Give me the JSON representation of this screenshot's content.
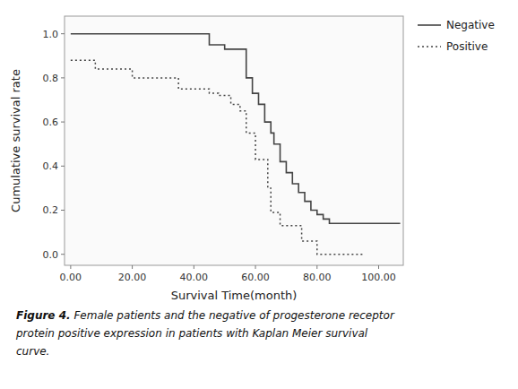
{
  "chart_data": {
    "type": "step",
    "x_label": "Survival Time(month)",
    "y_label": "Cumulative survival rate",
    "xlim": [
      -2,
      108
    ],
    "ylim": [
      -0.05,
      1.08
    ],
    "xticks": [
      {
        "value": 0,
        "label": "0.00"
      },
      {
        "value": 20,
        "label": "20.00"
      },
      {
        "value": 40,
        "label": "40.00"
      },
      {
        "value": 60,
        "label": "60.00"
      },
      {
        "value": 80,
        "label": "80.00"
      },
      {
        "value": 100,
        "label": "100.00"
      }
    ],
    "yticks": [
      {
        "value": 0,
        "label": "0.0"
      },
      0.2,
      0.4,
      0.6,
      0.8,
      {
        "value": 1,
        "label": "1.0"
      }
    ],
    "grid": false,
    "legend": "right",
    "series": [
      {
        "name": "Negative",
        "color": "#444444",
        "line_style": "solid",
        "x": [
          0,
          10,
          10,
          20,
          20,
          45,
          45,
          50,
          50,
          52,
          52,
          55,
          55,
          57,
          57,
          59,
          59,
          61,
          61,
          63,
          63,
          65,
          65,
          66,
          66,
          68,
          68,
          70,
          70,
          72,
          72,
          74,
          74,
          76,
          76,
          78,
          78,
          80,
          80,
          82,
          82,
          84,
          84,
          90,
          90,
          100,
          100,
          107
        ],
        "values": [
          1.0,
          1.0,
          1.0,
          1.0,
          1.0,
          1.0,
          0.95,
          0.95,
          0.93,
          0.93,
          0.93,
          0.93,
          0.93,
          0.93,
          0.8,
          0.8,
          0.73,
          0.73,
          0.68,
          0.68,
          0.6,
          0.6,
          0.55,
          0.55,
          0.5,
          0.5,
          0.42,
          0.42,
          0.37,
          0.37,
          0.32,
          0.32,
          0.28,
          0.28,
          0.24,
          0.24,
          0.2,
          0.2,
          0.18,
          0.18,
          0.16,
          0.16,
          0.14,
          0.14,
          0.14,
          0.14,
          0.14,
          0.14
        ]
      },
      {
        "name": "Positive",
        "color": "#444444",
        "line_style": "dotted",
        "x": [
          0,
          5,
          5,
          8,
          8,
          10,
          10,
          20,
          20,
          30,
          30,
          35,
          35,
          40,
          40,
          45,
          45,
          48,
          48,
          52,
          52,
          55,
          55,
          57,
          57,
          60,
          60,
          62,
          62,
          64,
          64,
          65,
          65,
          67,
          67,
          68,
          68,
          70,
          70,
          75,
          75,
          78,
          78,
          80,
          80,
          85,
          85,
          95
        ],
        "values": [
          0.88,
          0.88,
          0.88,
          0.88,
          0.84,
          0.84,
          0.84,
          0.84,
          0.8,
          0.8,
          0.8,
          0.8,
          0.75,
          0.75,
          0.75,
          0.75,
          0.73,
          0.73,
          0.72,
          0.72,
          0.68,
          0.68,
          0.65,
          0.65,
          0.55,
          0.55,
          0.43,
          0.43,
          0.43,
          0.43,
          0.3,
          0.3,
          0.19,
          0.19,
          0.19,
          0.19,
          0.13,
          0.13,
          0.13,
          0.13,
          0.06,
          0.06,
          0.06,
          0.06,
          0.0,
          0.0,
          0.0,
          0.0
        ]
      }
    ],
    "caption_bold": "Figure 4.",
    "caption": [
      "Figure 4. Female patients and the negative of progesterone receptor",
      "protein positive expression in patients with Kaplan Meier survival",
      "curve."
    ]
  }
}
